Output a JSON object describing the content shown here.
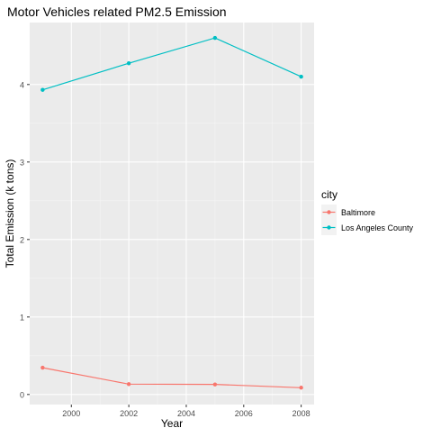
{
  "chart_data": {
    "type": "line",
    "title": "Motor Vehicles related PM2.5 Emission",
    "xlabel": "Year",
    "ylabel": "Total Emission (k tons)",
    "x": [
      1999,
      2002,
      2005,
      2008
    ],
    "x_ticks": [
      2000,
      2002,
      2004,
      2006,
      2008
    ],
    "y_ticks": [
      0,
      1,
      2,
      3,
      4
    ],
    "xlim": [
      1998.55,
      2008.45
    ],
    "ylim": [
      -0.13,
      4.8
    ],
    "grid": true,
    "legend": {
      "title": "city",
      "placement": "right"
    },
    "series": [
      {
        "name": "Baltimore",
        "color": "#F8766D",
        "values": [
          0.346,
          0.134,
          0.13,
          0.088
        ]
      },
      {
        "name": "Los Angeles County",
        "color": "#00BFC4",
        "values": [
          3.931,
          4.274,
          4.601,
          4.101
        ]
      }
    ]
  }
}
